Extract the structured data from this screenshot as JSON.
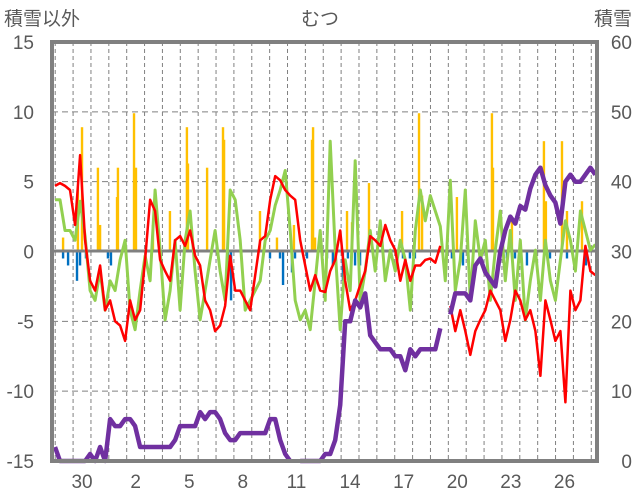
{
  "chart_data": {
    "type": "line",
    "title": "むつ",
    "ylabel_left": "積雪以外",
    "ylabel_right": "積雪",
    "ylim_left": [
      -15,
      15
    ],
    "ylim_right": [
      0,
      60
    ],
    "yticks_left": [
      "15",
      "10",
      "5",
      "0",
      "-5",
      "-10",
      "-15"
    ],
    "yticks_right": [
      "60",
      "50",
      "40",
      "30",
      "20",
      "10",
      "0"
    ],
    "x_unit": "days since Mar 28",
    "xlim": [
      0.32,
      30.82
    ],
    "xtick_days": [
      2,
      5,
      8,
      11,
      14,
      17,
      20,
      23,
      26,
      29
    ],
    "xtick_labels": [
      "30",
      "2",
      "5",
      "8",
      "11",
      "14",
      "17",
      "20",
      "23",
      "26"
    ],
    "grid": "dashed, daily vertical and every 5 units horizontal",
    "colors": {
      "red": "#ff0000",
      "green": "#92d050",
      "purple": "#7030a0",
      "orange": "#ffc000",
      "blue": "#0070c0",
      "axis": "#808080"
    },
    "series": [
      {
        "name": "red",
        "axis": "left",
        "x_start": 0.49,
        "x_step": 0.28,
        "values": [
          4.7,
          4.9,
          4.7,
          4.4,
          1.9,
          6.9,
          0.8,
          -2.1,
          -2.8,
          -1.0,
          -4.2,
          -3.5,
          -5.0,
          -5.3,
          -6.4,
          -3.5,
          -4.9,
          -4.2,
          -0.6,
          3.7,
          2.9,
          -0.6,
          -1.4,
          -2.1,
          0.8,
          1.1,
          0.4,
          1.5,
          -0.3,
          -1.0,
          -3.5,
          -4.2,
          -5.7,
          -5.3,
          -3.9,
          -0.3,
          -2.8,
          -2.8,
          -3.5,
          -4.2,
          -1.7,
          0.8,
          1.1,
          3.7,
          5.4,
          5.1,
          4.4,
          4.0,
          3.7,
          0.8,
          -1.0,
          -2.8,
          -1.7,
          -2.8,
          -2.9,
          -1.4,
          -0.6,
          1.5,
          -2.1,
          -4.2,
          -3.5,
          -2.4,
          -1.4,
          1.1,
          0.8,
          0.4,
          1.9,
          0.8,
          0.1,
          -2.1,
          -0.6,
          -2.1,
          -1.0,
          -1.0,
          -0.6,
          -0.5,
          -0.8,
          0.4,
          null,
          -3.9,
          -5.7,
          -4.2,
          -5.7,
          -7.4,
          -5.7,
          -4.9,
          -4.2,
          -2.8,
          -3.5,
          -4.2,
          -6.4,
          -4.9,
          -2.8,
          -3.5,
          -4.9,
          -4.2,
          -5.7,
          -8.9,
          -3.5,
          -4.9,
          -6.4,
          -5.7,
          -10.8,
          -2.8,
          -4.2,
          -3.5,
          0.4,
          -1.4,
          -1.7
        ]
      },
      {
        "name": "green",
        "axis": "left",
        "x_start": 0.49,
        "x_step": 0.28,
        "values": [
          3.7,
          3.7,
          1.5,
          1.5,
          0.8,
          3.6,
          1.1,
          -2.8,
          -3.5,
          -1.4,
          -4.2,
          -2.1,
          -2.8,
          -0.6,
          0.8,
          -4.2,
          -5.6,
          -2.8,
          -0.3,
          -2.1,
          4.4,
          0.1,
          -4.9,
          -2.8,
          0.8,
          -4.2,
          0.8,
          2.9,
          -1.4,
          -4.9,
          -2.8,
          -0.6,
          1.5,
          -1.4,
          -3.5,
          4.4,
          3.7,
          0.8,
          -4.2,
          -3.5,
          -2.8,
          -2.1,
          0.8,
          1.5,
          3.3,
          4.4,
          5.8,
          1.5,
          -3.5,
          -4.9,
          -4.2,
          -5.6,
          -2.1,
          1.5,
          -3.5,
          7.9,
          0.1,
          -5.6,
          -0.6,
          -2.8,
          6.5,
          -3.5,
          -1.4,
          1.5,
          -1.4,
          2.2,
          -2.1,
          0.1,
          -1.4,
          0.8,
          -0.6,
          -4.2,
          1.5,
          4.4,
          2.2,
          4.0,
          2.9,
          1.8,
          -2.1,
          5.1,
          -2.8,
          -0.6,
          4.4,
          -3.5,
          2.2,
          -0.6,
          0.8,
          -3.5,
          0.1,
          2.9,
          -2.1,
          1.5,
          -3.5,
          0.8,
          -4.9,
          -2.1,
          0.1,
          -3.5,
          0.8,
          -2.1,
          -3.5,
          -0.6,
          2.2,
          0.8,
          -1.4,
          2.9,
          1.5,
          0.1,
          0.5
        ]
      },
      {
        "name": "purple",
        "axis": "right",
        "x_start": 0.49,
        "x_step": 0.28,
        "values": [
          2,
          0,
          0,
          0,
          0,
          0,
          0,
          1,
          0,
          2,
          0,
          6,
          5,
          5,
          6,
          6,
          5,
          2,
          2,
          2,
          2,
          2,
          2,
          2,
          3,
          5,
          5,
          5,
          5,
          7,
          6,
          7,
          7,
          6,
          4,
          3,
          3,
          4,
          4,
          4,
          4,
          4,
          4,
          6,
          6,
          3,
          1,
          0,
          null,
          0,
          0,
          0,
          0,
          0,
          1,
          1,
          3,
          8,
          20,
          20,
          23,
          22,
          24,
          18,
          17,
          16,
          16,
          16,
          15,
          15,
          13,
          16,
          15,
          16,
          16,
          16,
          16,
          19,
          null,
          21,
          24,
          24,
          24,
          23,
          28,
          29,
          27,
          26,
          25,
          30,
          33,
          35,
          34,
          36.5,
          36,
          39,
          41,
          42,
          39.5,
          38,
          37,
          34,
          40,
          41,
          40,
          40,
          41,
          42,
          41
        ]
      },
      {
        "name": "orange-bars",
        "axis": "left",
        "type": "bar",
        "points": [
          [
            0.94,
            1.0
          ],
          [
            1.77,
            4.6
          ],
          [
            2.0,
            8.9
          ],
          [
            2.89,
            6.0
          ],
          [
            3.01,
            1.9
          ],
          [
            3.96,
            3.9
          ],
          [
            4.01,
            6.0
          ],
          [
            4.91,
            9.9
          ],
          [
            5.02,
            6.0
          ],
          [
            5.97,
            1.9
          ],
          [
            6.92,
            2.9
          ],
          [
            7.87,
            8.9
          ],
          [
            7.93,
            6.3
          ],
          [
            9.0,
            6.0
          ],
          [
            9.89,
            8.9
          ],
          [
            9.95,
            8.0
          ],
          [
            11.96,
            2.9
          ],
          [
            12.91,
            1.0
          ],
          [
            13.86,
            1.9
          ],
          [
            14.87,
            8.0
          ],
          [
            14.93,
            8.9
          ],
          [
            15.04,
            1.0
          ],
          [
            16.83,
            2.9
          ],
          [
            17.11,
            2.1
          ],
          [
            18.06,
            4.9
          ],
          [
            19.91,
            2.9
          ],
          [
            20.86,
            9.9
          ],
          [
            21.03,
            4.0
          ],
          [
            22.98,
            3.9
          ],
          [
            24.94,
            9.9
          ],
          [
            25.0,
            6.0
          ],
          [
            26.06,
            2.2
          ],
          [
            27.85,
            7.9
          ],
          [
            27.96,
            3.6
          ],
          [
            28.86,
            7.9
          ],
          [
            29.14,
            2.9
          ],
          [
            29.98,
            3.6
          ]
        ]
      },
      {
        "name": "blue-bars",
        "axis": "left",
        "type": "bar",
        "points": [
          [
            0.94,
            -0.5
          ],
          [
            1.22,
            -1
          ],
          [
            1.72,
            -2.1
          ],
          [
            1.89,
            -1
          ],
          [
            2.22,
            -0.5
          ],
          [
            3.45,
            -0.5
          ],
          [
            3.62,
            -1
          ],
          [
            10.17,
            -1.5
          ],
          [
            10.34,
            -3.5
          ],
          [
            12.52,
            -0.5
          ],
          [
            13.08,
            -0.5
          ],
          [
            13.25,
            -2.4
          ],
          [
            13.75,
            -1.5
          ],
          [
            13.92,
            -0.5
          ],
          [
            14.59,
            -0.5
          ],
          [
            15.71,
            -0.5
          ],
          [
            16.04,
            -1
          ],
          [
            16.6,
            -2.1
          ],
          [
            16.88,
            -0.5
          ],
          [
            17.28,
            -1
          ],
          [
            17.56,
            -1
          ],
          [
            19.96,
            -0.5
          ],
          [
            20.35,
            -0.5
          ],
          [
            20.63,
            -0.5
          ],
          [
            22.7,
            -0.5
          ],
          [
            23.32,
            -1
          ],
          [
            25.39,
            -0.5
          ],
          [
            25.78,
            -0.5
          ],
          [
            26.23,
            -0.5
          ],
          [
            26.9,
            -1
          ],
          [
            27.35,
            -0.5
          ],
          [
            28.19,
            -0.5
          ],
          [
            29.14,
            -0.5
          ],
          [
            30.2,
            -1
          ]
        ]
      }
    ]
  }
}
